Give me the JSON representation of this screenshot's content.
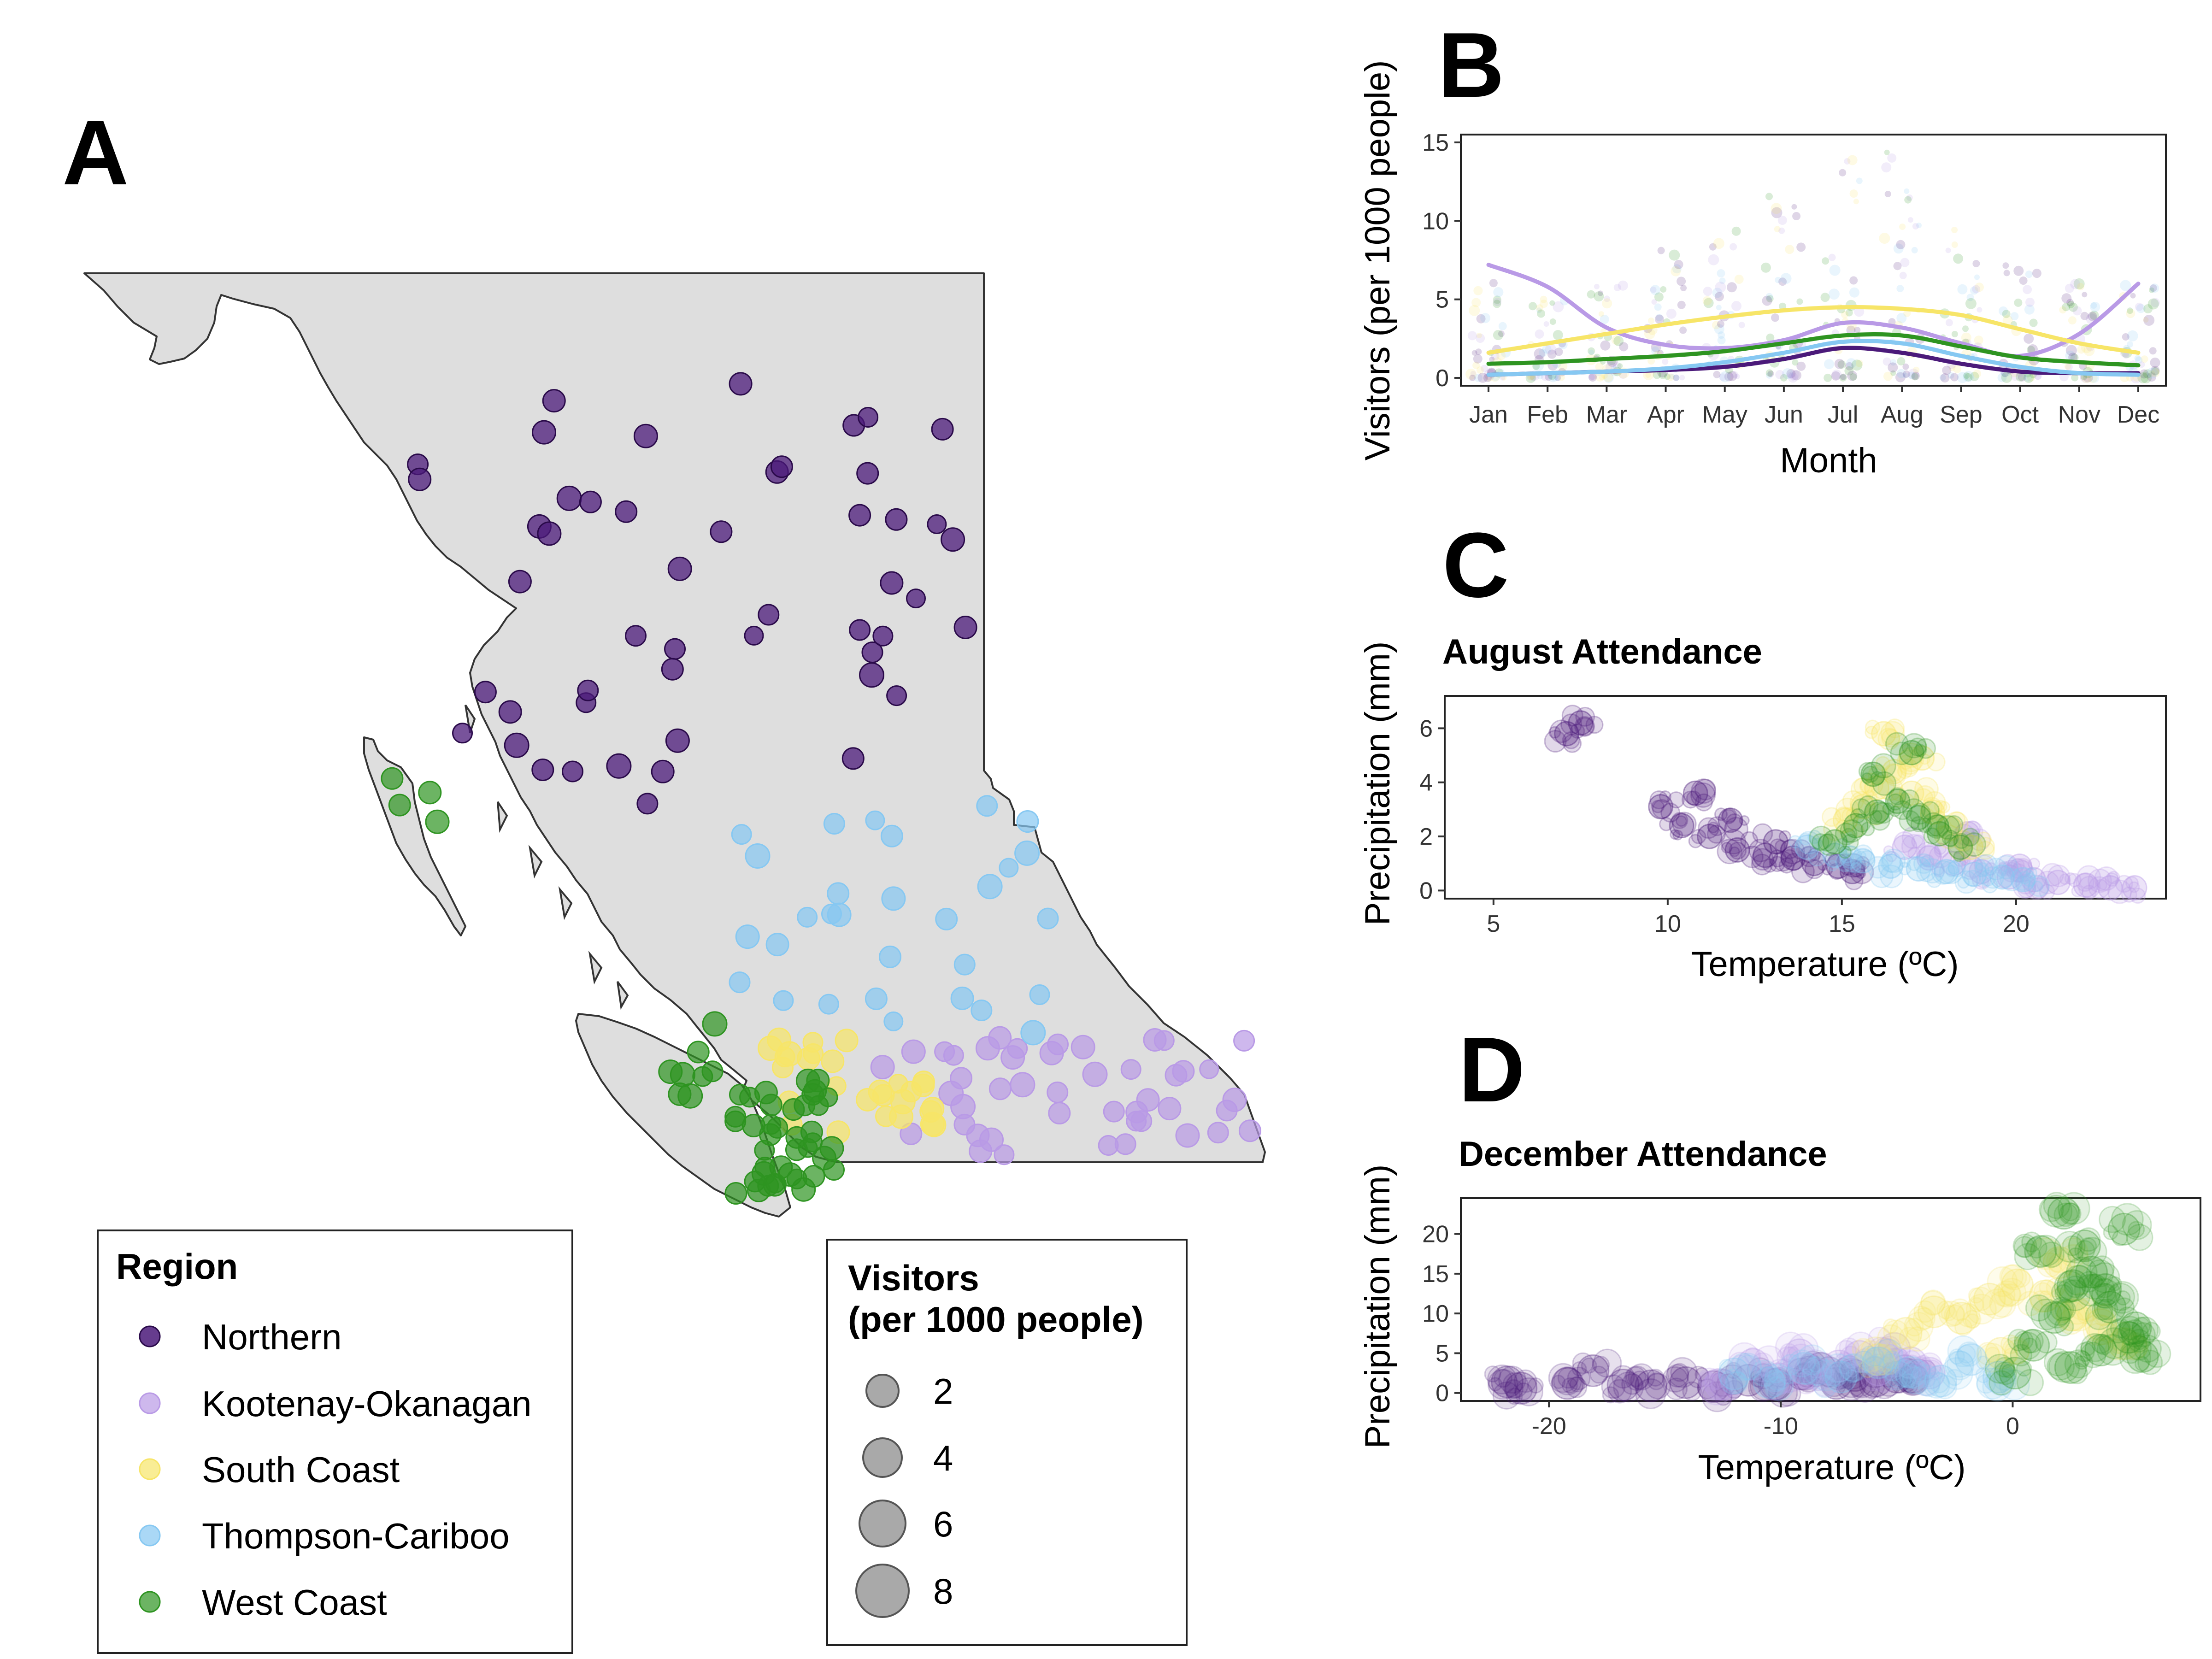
{
  "panels": {
    "a": {
      "letter": "A"
    },
    "b": {
      "letter": "B"
    },
    "c": {
      "letter": "C"
    },
    "d": {
      "letter": "D"
    }
  },
  "colors": {
    "Northern": "#4b1a7a",
    "Kootenay-Okanagan": "#b99ae6",
    "South Coast": "#f7e568",
    "Thompson-Cariboo": "#86c8f2",
    "West Coast": "#2e9421",
    "land": "#dedede",
    "coast": "#333333",
    "size_key": "#8c8c8c"
  },
  "region_legend": {
    "title": "Region",
    "items": [
      "Northern",
      "Kootenay-Okanagan",
      "South Coast",
      "Thompson-Cariboo",
      "West Coast"
    ]
  },
  "size_legend": {
    "title_line1": "Visitors",
    "title_line2": "(per 1000 people)",
    "items": [
      "2",
      "4",
      "6",
      "8"
    ]
  },
  "chart_data": [
    {
      "type": "line",
      "panel": "B",
      "title": "",
      "xlabel": "Month",
      "ylabel": "Visitors (per 1000 people)",
      "categories": [
        "Jan",
        "Feb",
        "Mar",
        "Apr",
        "May",
        "Jun",
        "Jul",
        "Aug",
        "Sep",
        "Oct",
        "Nov",
        "Dec"
      ],
      "ylim": [
        -0.5,
        15.5
      ],
      "yticks": [
        "0",
        "5",
        "10",
        "15"
      ],
      "grid": false,
      "series": [
        {
          "name": "Northern",
          "values": [
            0.2,
            0.3,
            0.4,
            0.5,
            0.7,
            1.2,
            1.9,
            1.6,
            0.9,
            0.4,
            0.3,
            0.3
          ]
        },
        {
          "name": "Kootenay-Okanagan",
          "values": [
            7.2,
            5.8,
            3.2,
            2.1,
            1.9,
            2.4,
            3.5,
            3.2,
            2.2,
            1.4,
            2.8,
            6.0
          ]
        },
        {
          "name": "South Coast",
          "values": [
            1.6,
            2.2,
            2.8,
            3.4,
            3.9,
            4.3,
            4.5,
            4.4,
            4.0,
            3.1,
            2.2,
            1.6
          ]
        },
        {
          "name": "Thompson-Cariboo",
          "values": [
            0.2,
            0.3,
            0.4,
            0.6,
            1.0,
            1.6,
            2.3,
            2.2,
            1.4,
            0.7,
            0.3,
            0.2
          ]
        },
        {
          "name": "West Coast",
          "values": [
            0.9,
            1.0,
            1.2,
            1.4,
            1.7,
            2.2,
            2.7,
            2.7,
            2.0,
            1.3,
            1.0,
            0.8
          ]
        }
      ]
    },
    {
      "type": "scatter",
      "panel": "C",
      "title": "August Attendance",
      "xlabel": "Temperature (ºC)",
      "ylabel": "Precipitation (mm)",
      "xlim": [
        3.6,
        24.3
      ],
      "ylim": [
        -0.3,
        7.2
      ],
      "xticks": [
        "5",
        "10",
        "15",
        "20"
      ],
      "yticks": [
        "0",
        "2",
        "4",
        "6"
      ],
      "grid": false,
      "series": [
        {
          "name": "Northern",
          "x": [
            7.1,
            7.5,
            9.8,
            10.4,
            11.2,
            12.0,
            12.8,
            13.6,
            14.2,
            14.9,
            15.3,
            10.8,
            11.8,
            13.1
          ],
          "y": [
            5.8,
            6.2,
            3.1,
            2.4,
            2.0,
            1.5,
            1.3,
            1.2,
            1.0,
            0.9,
            0.7,
            3.6,
            2.6,
            1.8
          ]
        },
        {
          "name": "Kootenay-Okanagan",
          "x": [
            16.8,
            17.5,
            18.2,
            19.0,
            19.8,
            20.5,
            21.2,
            22.0,
            22.7,
            23.4,
            18.6,
            20.1
          ],
          "y": [
            1.6,
            1.2,
            1.0,
            0.7,
            0.5,
            0.4,
            0.3,
            0.2,
            0.1,
            0.1,
            2.1,
            0.9
          ]
        },
        {
          "name": "South Coast",
          "x": [
            15.1,
            15.6,
            16.0,
            16.5,
            17.0,
            17.6,
            18.1,
            18.7,
            16.2,
            17.3
          ],
          "y": [
            2.6,
            3.1,
            3.8,
            4.4,
            3.6,
            2.9,
            2.3,
            1.6,
            5.8,
            4.9
          ]
        },
        {
          "name": "Thompson-Cariboo",
          "x": [
            14.0,
            14.8,
            15.6,
            16.4,
            17.2,
            18.0,
            18.8,
            19.6,
            20.2
          ],
          "y": [
            1.6,
            1.3,
            1.1,
            0.9,
            0.8,
            0.7,
            0.6,
            0.5,
            0.4
          ]
        },
        {
          "name": "West Coast",
          "x": [
            14.8,
            15.4,
            16.0,
            16.6,
            17.2,
            17.8,
            18.4,
            15.9,
            17.0
          ],
          "y": [
            1.8,
            2.4,
            2.9,
            3.3,
            2.7,
            2.1,
            1.6,
            4.3,
            5.1
          ]
        }
      ]
    },
    {
      "type": "scatter",
      "panel": "D",
      "title": "December Attendance",
      "xlabel": "Temperature (ºC)",
      "ylabel": "Precipitation (mm)",
      "xlim": [
        -23.8,
        8.1
      ],
      "ylim": [
        -1.0,
        24.5
      ],
      "xticks": [
        "-20",
        "-10",
        "0"
      ],
      "yticks": [
        "0",
        "5",
        "10",
        "15",
        "20"
      ],
      "grid": false,
      "series": [
        {
          "name": "Northern",
          "x": [
            -21.8,
            -21.2,
            -19.2,
            -18.1,
            -16.8,
            -15.6,
            -14.1,
            -12.9,
            -11.4,
            -10.2,
            -9.1,
            -8.3,
            -7.6,
            -6.8,
            -5.9,
            -5.0,
            -4.3
          ],
          "y": [
            1.4,
            0.6,
            1.2,
            2.8,
            1.0,
            0.9,
            1.3,
            0.8,
            1.6,
            1.1,
            2.4,
            3.1,
            1.2,
            2.2,
            1.5,
            2.0,
            1.7
          ]
        },
        {
          "name": "Kootenay-Okanagan",
          "x": [
            -12.6,
            -11.2,
            -10.1,
            -9.2,
            -8.4,
            -7.5,
            -6.6,
            -5.8,
            -5.1,
            -4.4,
            -3.6
          ],
          "y": [
            1.1,
            3.6,
            1.8,
            4.8,
            2.3,
            3.4,
            4.6,
            2.9,
            5.6,
            3.8,
            2.5
          ]
        },
        {
          "name": "South Coast",
          "x": [
            -5.8,
            -4.6,
            -3.4,
            -2.2,
            -1.0,
            0.2,
            1.4,
            2.6,
            3.8,
            4.8,
            2.0,
            -0.5
          ],
          "y": [
            4.2,
            7.5,
            10.2,
            9.4,
            11.8,
            13.6,
            12.2,
            9.8,
            8.6,
            6.2,
            16.4,
            5.0
          ]
        },
        {
          "name": "Thompson-Cariboo",
          "x": [
            -12.0,
            -10.5,
            -9.0,
            -7.4,
            -5.8,
            -4.4,
            -3.1,
            -1.8,
            -0.6
          ],
          "y": [
            2.4,
            1.3,
            3.1,
            2.0,
            3.8,
            2.6,
            1.5,
            4.2,
            2.0
          ]
        },
        {
          "name": "West Coast",
          "x": [
            0.1,
            0.9,
            1.8,
            2.6,
            3.4,
            4.2,
            5.0,
            5.6,
            1.2,
            2.2,
            3.1,
            4.0,
            4.8,
            2.5,
            3.8,
            5.3
          ],
          "y": [
            2.5,
            6.0,
            9.5,
            13.5,
            15.2,
            10.8,
            7.0,
            4.6,
            17.8,
            22.6,
            18.5,
            13.0,
            20.6,
            3.2,
            5.4,
            8.2
          ]
        }
      ]
    }
  ]
}
